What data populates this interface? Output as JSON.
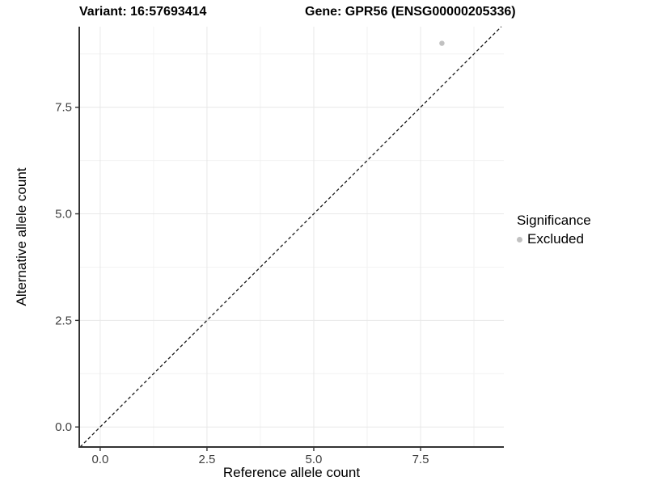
{
  "header": {
    "variant_title": "Variant: 16:57693414",
    "gene_title": "Gene: GPR56 (ENSG00000205336)"
  },
  "chart_data": {
    "type": "scatter",
    "titles": [
      "Variant: 16:57693414",
      "Gene: GPR56 (ENSG00000205336)"
    ],
    "xlabel": "Reference allele count",
    "ylabel": "Alternative allele count",
    "x_ticks": [
      0,
      2.5,
      5,
      7.5
    ],
    "x_tick_labels": [
      "0.0",
      "2.5",
      "5.0",
      "7.5"
    ],
    "y_ticks": [
      0,
      2.5,
      5,
      7.5
    ],
    "y_tick_labels": [
      "0.0",
      "2.5",
      "5.0",
      "7.5"
    ],
    "x_domain": [
      -0.49,
      9.45
    ],
    "y_domain": [
      -0.47,
      9.39
    ],
    "grid": true,
    "points": [
      {
        "x": 8,
        "y": 9,
        "significance": "Excluded"
      }
    ],
    "reference_line": {
      "type": "abline",
      "slope": 1,
      "intercept": 0,
      "style": "dashed"
    },
    "legend": {
      "title": "Significance",
      "position": "right",
      "items": [
        {
          "label": "Excluded",
          "color": "#c1c1c1"
        }
      ]
    },
    "colors": {
      "point": "#c1c1c1",
      "grid_major": "#e8e8e8",
      "grid_minor": "#f2f2f2",
      "axis_line": "#333333",
      "tick_mark": "#333333",
      "tick_label": "#404040",
      "reference_line": "#1a1a1a"
    }
  }
}
